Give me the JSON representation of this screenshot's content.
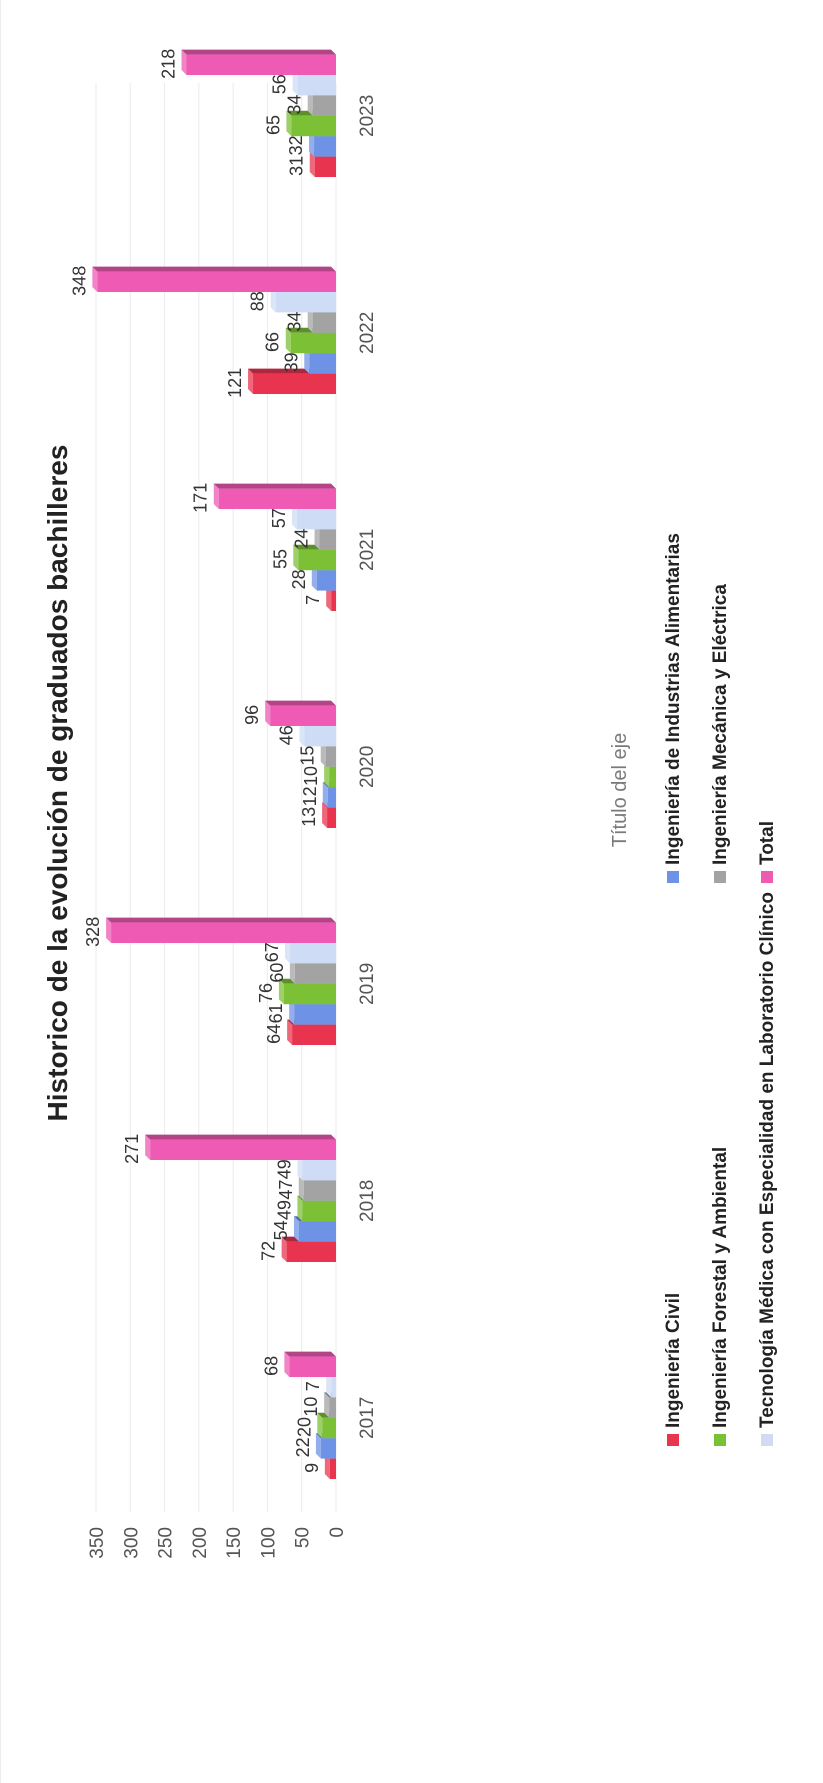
{
  "chart_data": {
    "type": "bar",
    "title": "Historico de la evolución  de graduados bachilleres",
    "xlabel": "Título del eje",
    "ylabel": "",
    "categories": [
      "2017",
      "2018",
      "2019",
      "2020",
      "2021",
      "2022",
      "2023"
    ],
    "ylim": [
      0,
      350
    ],
    "yticks": [
      "0",
      "50",
      "100",
      "150",
      "200",
      "250",
      "300",
      "350"
    ],
    "orientation": "rotated-90-ccw",
    "legend_position": "bottom",
    "grid": true,
    "series": [
      {
        "name": "Ingeniería Civil",
        "color": "#e8344e",
        "values": [
          9,
          72,
          64,
          13,
          7,
          121,
          31
        ]
      },
      {
        "name": "Ingeniería de Industrias Alimentarias",
        "color": "#6e93e6",
        "values": [
          22,
          54,
          61,
          12,
          28,
          39,
          32
        ]
      },
      {
        "name": "Ingeniería Forestal y Ambiental",
        "color": "#7cc035",
        "values": [
          20,
          49,
          76,
          10,
          55,
          66,
          65
        ]
      },
      {
        "name": "Ingeniería Mecánica y Eléctrica",
        "color": "#a3a3a3",
        "values": [
          10,
          47,
          60,
          15,
          24,
          34,
          34
        ]
      },
      {
        "name": "Tecnología Médica con Especialidad en Laboratorio Clínico",
        "color": "#cfdcf5",
        "values": [
          7,
          49,
          67,
          46,
          57,
          88,
          56
        ]
      },
      {
        "name": "Total",
        "color": "#ee5ab4",
        "values": [
          68,
          271,
          328,
          96,
          171,
          348,
          218
        ]
      }
    ]
  }
}
